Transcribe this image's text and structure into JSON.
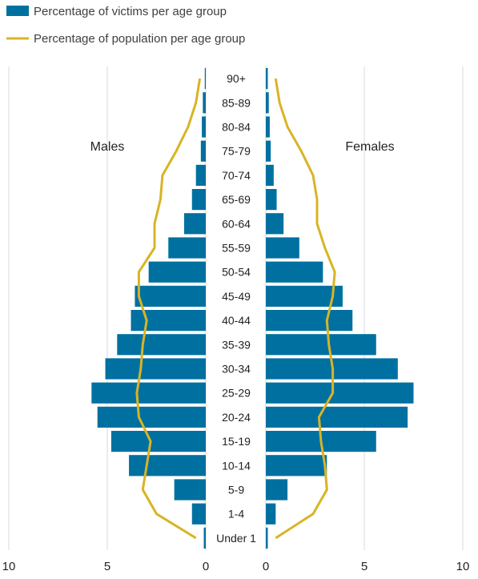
{
  "chart_data": {
    "type": "bar",
    "orientation": "horizontal",
    "layout": "population-pyramid",
    "left_label": "Males",
    "right_label": "Females",
    "categories": [
      "Under 1",
      "1-4",
      "5-9",
      "10-14",
      "15-19",
      "20-24",
      "25-29",
      "30-34",
      "35-39",
      "40-44",
      "45-49",
      "50-54",
      "55-59",
      "60-64",
      "65-69",
      "70-74",
      "75-79",
      "80-84",
      "85-89",
      "90+"
    ],
    "series": [
      {
        "name": "Percentage of victims per age group",
        "kind": "bar",
        "color": "#0070A0",
        "males": [
          0.1,
          0.7,
          1.6,
          3.9,
          4.8,
          5.5,
          5.8,
          5.1,
          4.5,
          3.8,
          3.6,
          2.9,
          1.9,
          1.1,
          0.7,
          0.5,
          0.25,
          0.2,
          0.15,
          0.05
        ],
        "females": [
          0.1,
          0.5,
          1.1,
          3.1,
          5.6,
          7.2,
          7.5,
          6.7,
          5.6,
          4.4,
          3.9,
          2.9,
          1.7,
          0.9,
          0.55,
          0.4,
          0.25,
          0.2,
          0.15,
          0.1
        ]
      },
      {
        "name": "Percentage of population per age group",
        "kind": "line",
        "color": "#D9B424",
        "males": [
          0.5,
          2.5,
          3.2,
          3.0,
          2.8,
          3.4,
          3.5,
          3.3,
          3.2,
          3.0,
          3.4,
          3.4,
          2.6,
          2.6,
          2.3,
          2.2,
          1.5,
          0.9,
          0.5,
          0.3
        ],
        "females": [
          0.5,
          2.4,
          3.1,
          3.0,
          2.8,
          2.7,
          3.4,
          3.4,
          3.2,
          3.1,
          3.4,
          3.5,
          3.0,
          2.6,
          2.6,
          2.4,
          1.8,
          1.1,
          0.7,
          0.5
        ]
      }
    ],
    "x_ticks_left": [
      "10",
      "5",
      "0"
    ],
    "x_ticks_right": [
      "0",
      "5",
      "10"
    ],
    "xlim": [
      0,
      10
    ],
    "grid": "vertical",
    "legend_position": "top-left"
  },
  "colors": {
    "bar": "#0070A0",
    "line": "#D9B424",
    "grid": "#d9d9d9"
  }
}
